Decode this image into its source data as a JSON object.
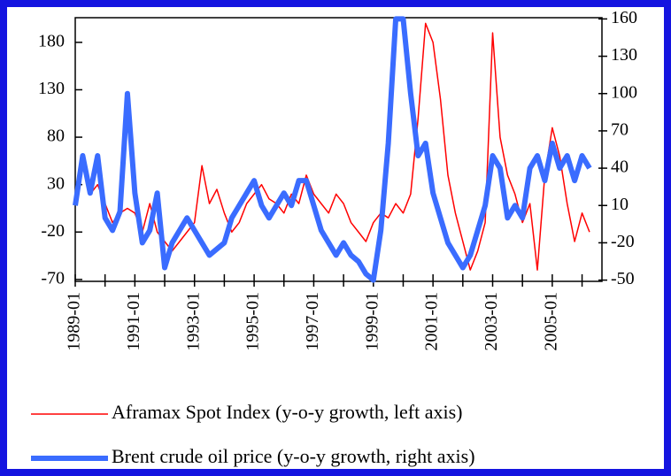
{
  "chart_data": {
    "type": "line",
    "x": [
      "1989-01",
      "1989-04",
      "1989-07",
      "1989-10",
      "1990-01",
      "1990-04",
      "1990-07",
      "1990-10",
      "1991-01",
      "1991-04",
      "1991-07",
      "1991-10",
      "1992-01",
      "1992-04",
      "1992-07",
      "1992-10",
      "1993-01",
      "1993-04",
      "1993-07",
      "1993-10",
      "1994-01",
      "1994-04",
      "1994-07",
      "1994-10",
      "1995-01",
      "1995-04",
      "1995-07",
      "1995-10",
      "1996-01",
      "1996-04",
      "1996-07",
      "1996-10",
      "1997-01",
      "1997-04",
      "1997-07",
      "1997-10",
      "1998-01",
      "1998-04",
      "1998-07",
      "1998-10",
      "1999-01",
      "1999-04",
      "1999-07",
      "1999-10",
      "2000-01",
      "2000-04",
      "2000-07",
      "2000-10",
      "2001-01",
      "2001-04",
      "2001-07",
      "2001-10",
      "2002-01",
      "2002-04",
      "2002-07",
      "2002-10",
      "2003-01",
      "2003-04",
      "2003-07",
      "2003-10",
      "2004-01",
      "2004-04",
      "2004-07",
      "2004-10",
      "2005-01",
      "2005-04",
      "2005-07",
      "2005-10",
      "2006-01",
      "2006-04"
    ],
    "series": [
      {
        "name": "Aframax Spot Index (y-o-y growth, left axis)",
        "color": "#ff0000",
        "axis": "y",
        "values": [
          20,
          60,
          20,
          30,
          10,
          -10,
          0,
          5,
          0,
          -20,
          10,
          -20,
          -30,
          -40,
          -30,
          -20,
          -10,
          50,
          10,
          25,
          0,
          -20,
          -10,
          10,
          20,
          30,
          15,
          10,
          0,
          20,
          10,
          40,
          20,
          10,
          0,
          20,
          10,
          -10,
          -20,
          -30,
          -10,
          0,
          -5,
          10,
          0,
          20,
          100,
          200,
          180,
          120,
          40,
          0,
          -30,
          -60,
          -40,
          -10,
          190,
          80,
          40,
          20,
          -10,
          10,
          -60,
          40,
          90,
          60,
          10,
          -30,
          0,
          -20
        ]
      },
      {
        "name": "Brent crude oil price (y-o-y growth, right axis)",
        "color": "#3a6cff",
        "axis": "y2",
        "values": [
          10,
          50,
          20,
          50,
          0,
          -10,
          5,
          100,
          20,
          -20,
          -10,
          20,
          -40,
          -20,
          -10,
          0,
          -10,
          -20,
          -30,
          -25,
          -20,
          0,
          10,
          20,
          30,
          10,
          0,
          10,
          20,
          10,
          30,
          30,
          10,
          -10,
          -20,
          -30,
          -20,
          -30,
          -35,
          -45,
          -50,
          -10,
          60,
          160,
          160,
          100,
          50,
          60,
          20,
          0,
          -20,
          -30,
          -40,
          -30,
          -10,
          10,
          50,
          40,
          0,
          10,
          0,
          40,
          50,
          30,
          60,
          40,
          50,
          30,
          50,
          40
        ]
      }
    ],
    "xlim": [
      "1989-01",
      "2006-09"
    ],
    "xticks": [
      "1989-01",
      "1991-01",
      "1993-01",
      "1995-01",
      "1997-01",
      "1999-01",
      "2001-01",
      "2003-01",
      "2005-01"
    ],
    "xminor_ticks": [
      "1990-01",
      "1992-01",
      "1994-01",
      "1996-01",
      "1998-01",
      "2000-01",
      "2002-01",
      "2004-01",
      "2006-01"
    ],
    "ylim": [
      -72,
      206
    ],
    "yticks": [
      -70,
      -20,
      30,
      80,
      130,
      180
    ],
    "y2lim": [
      -51,
      161
    ],
    "y2ticks": [
      -50,
      -20,
      10,
      40,
      70,
      100,
      130,
      160
    ],
    "legend": "bottom"
  }
}
